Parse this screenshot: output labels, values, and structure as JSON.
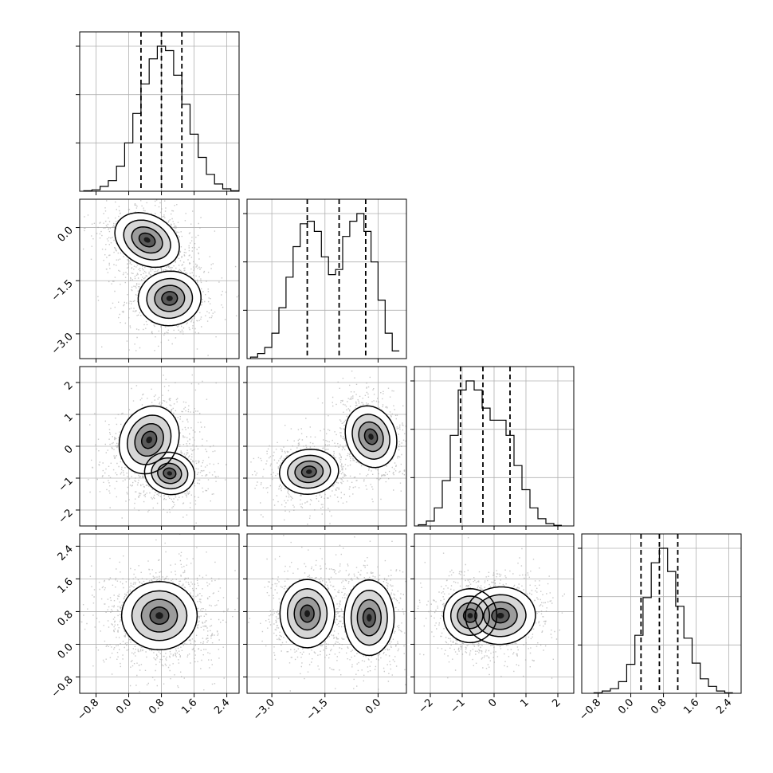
{
  "chart_data": {
    "type": "corner",
    "n_params": 4,
    "params": [
      {
        "index": 0,
        "range": [
          -1.2,
          2.7
        ],
        "ticks": [
          -0.8,
          0.0,
          0.8,
          1.6,
          2.4
        ],
        "tick_labels": [
          "−0.8",
          "0.0",
          "0.8",
          "1.6",
          "2.4"
        ],
        "quantiles": [
          0.3,
          0.8,
          1.3
        ],
        "hist_bins": [
          -1.0,
          -0.8,
          -0.6,
          -0.4,
          -0.2,
          0.0,
          0.2,
          0.4,
          0.6,
          0.8,
          1.0,
          1.2,
          1.4,
          1.6,
          1.8,
          2.0,
          2.2,
          2.4,
          2.6
        ],
        "hist_counts": [
          1,
          3,
          10,
          22,
          52,
          100,
          161,
          222,
          274,
          300,
          291,
          240,
          180,
          118,
          70,
          35,
          15,
          5,
          1
        ]
      },
      {
        "index": 1,
        "range": [
          -3.7,
          0.8
        ],
        "ticks": [
          -3.0,
          -1.5,
          0.0
        ],
        "tick_labels": [
          "−3.0",
          "−1.5",
          "0.0"
        ],
        "quantiles": [
          -2.0,
          -1.1,
          -0.35
        ],
        "hist_bins": [
          -3.5,
          -3.3,
          -3.1,
          -2.9,
          -2.7,
          -2.5,
          -2.3,
          -2.1,
          -1.9,
          -1.7,
          -1.5,
          -1.3,
          -1.1,
          -0.9,
          -0.7,
          -0.5,
          -0.3,
          -0.1,
          0.1,
          0.3,
          0.5
        ],
        "hist_counts": [
          3,
          10,
          22,
          50,
          100,
          160,
          220,
          265,
          270,
          250,
          200,
          165,
          175,
          240,
          270,
          285,
          250,
          190,
          115,
          50,
          15
        ]
      },
      {
        "index": 2,
        "range": [
          -2.5,
          2.5
        ],
        "ticks": [
          -2,
          -1,
          0,
          1,
          2
        ],
        "tick_labels": [
          "−2",
          "−1",
          "0",
          "1",
          "2"
        ],
        "quantiles": [
          -1.05,
          -0.35,
          0.5
        ],
        "hist_bins": [
          -2.25,
          -2.0,
          -1.75,
          -1.5,
          -1.25,
          -1.0,
          -0.75,
          -0.5,
          -0.25,
          0.0,
          0.25,
          0.5,
          0.75,
          1.0,
          1.25,
          1.5,
          1.75,
          2.0
        ],
        "hist_counts": [
          2,
          8,
          30,
          75,
          150,
          225,
          240,
          225,
          195,
          175,
          175,
          150,
          100,
          60,
          30,
          12,
          4,
          1
        ]
      },
      {
        "index": 3,
        "range": [
          -1.2,
          2.7
        ],
        "ticks": [
          -0.8,
          0.0,
          0.8,
          1.6,
          2.4
        ],
        "tick_labels": [
          "−0.8",
          "0.0",
          "0.8",
          "1.6",
          "2.4"
        ],
        "quantiles": [
          0.25,
          0.7,
          1.15
        ],
        "hist_bins": [
          -0.8,
          -0.6,
          -0.4,
          -0.2,
          0.0,
          0.2,
          0.4,
          0.6,
          0.8,
          1.0,
          1.2,
          1.4,
          1.6,
          1.8,
          2.0,
          2.2,
          2.4
        ],
        "hist_counts": [
          1,
          4,
          8,
          20,
          50,
          100,
          165,
          225,
          250,
          210,
          150,
          95,
          52,
          25,
          12,
          4,
          1
        ]
      }
    ],
    "joint_modes": {
      "1-0": [
        [
          0.45,
          -0.35,
          0.38,
          0.32,
          -0.5
        ],
        [
          1.0,
          -2.0,
          0.35,
          0.35,
          0.1
        ]
      ],
      "2-0": [
        [
          0.5,
          0.2,
          0.32,
          0.5,
          -0.45
        ],
        [
          1.0,
          -0.85,
          0.28,
          0.3,
          -0.2
        ]
      ],
      "2-1": [
        [
          -1.95,
          -0.8,
          0.38,
          0.32,
          0.1
        ],
        [
          -0.2,
          0.3,
          0.32,
          0.45,
          0.35
        ]
      ],
      "3-0": [
        [
          0.75,
          0.7,
          0.42,
          0.38,
          0.0
        ]
      ],
      "3-1": [
        [
          -2.0,
          0.75,
          0.35,
          0.38,
          0.0
        ],
        [
          -0.25,
          0.65,
          0.32,
          0.42,
          0.0
        ]
      ],
      "3-2": [
        [
          -0.75,
          0.7,
          0.38,
          0.3,
          -0.1
        ],
        [
          0.2,
          0.7,
          0.5,
          0.32,
          0.05
        ]
      ]
    },
    "title": "",
    "legend": "none",
    "grid": true
  }
}
